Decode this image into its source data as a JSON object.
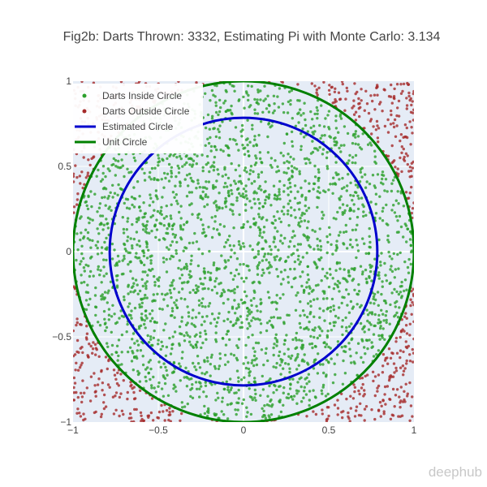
{
  "chart_data": {
    "type": "scatter",
    "title": "Fig2b: Darts Thrown: 3332, Estimating Pi with Monte Carlo: 3.134",
    "xlabel": "",
    "ylabel": "",
    "xlim": [
      -1,
      1
    ],
    "ylim": [
      -1,
      1
    ],
    "x_ticks": [
      -1,
      -0.5,
      0,
      0.5,
      1
    ],
    "y_ticks": [
      -1,
      -0.5,
      0,
      0.5,
      1
    ],
    "x_tick_labels": [
      "−1",
      "−0.5",
      "0",
      "0.5",
      "1"
    ],
    "y_tick_labels": [
      "−1",
      "−0.5",
      "0",
      "0.5",
      "1"
    ],
    "grid": true,
    "legend_position": "top-left",
    "darts_thrown": 3332,
    "pi_estimate": 3.134,
    "series": [
      {
        "name": "Darts Inside Circle",
        "kind": "markers",
        "color": "#2ca02c",
        "count": 2611
      },
      {
        "name": "Darts Outside Circle",
        "kind": "markers",
        "color": "#a52a2a",
        "count": 721
      },
      {
        "name": "Estimated Circle",
        "kind": "line",
        "color": "#0000cd",
        "radius": 0.785
      },
      {
        "name": "Unit Circle",
        "kind": "line",
        "color": "#008000",
        "radius": 1.0
      }
    ]
  },
  "watermark": "deephub",
  "colors": {
    "plot_background": "#e5ecf6",
    "grid": "#ffffff",
    "title_text": "#444444",
    "tick_text": "#444444"
  }
}
